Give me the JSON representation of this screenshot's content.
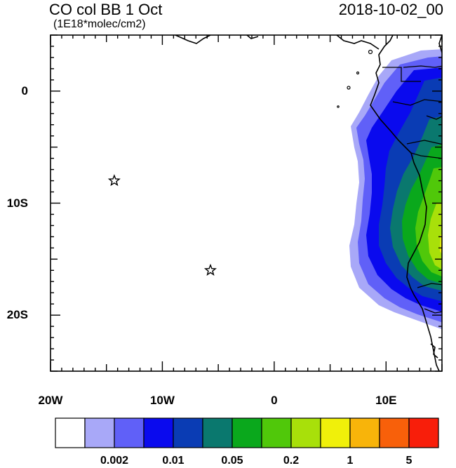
{
  "map": {
    "title": "CO col BB 1 Oct",
    "units": "(1E18*molec/cm2)",
    "date": "2018-10-02_00",
    "lat_labels": [
      {
        "lat": 0,
        "text": "0"
      },
      {
        "lat": -10,
        "text": "10S"
      },
      {
        "lat": -20,
        "text": "20S"
      }
    ],
    "lon_labels": [
      {
        "lon": -20,
        "text": "20W"
      },
      {
        "lon": -10,
        "text": "10W"
      },
      {
        "lon": 0,
        "text": "0"
      },
      {
        "lon": 10,
        "text": "10E"
      }
    ],
    "extent": {
      "lon_min": -20,
      "lon_max": 15,
      "lat_min": -25,
      "lat_max": 5
    },
    "markers": [
      {
        "name": "star-marker",
        "lon": -14.3,
        "lat": -8.0
      },
      {
        "name": "star-marker",
        "lon": -5.7,
        "lat": -16.0
      }
    ],
    "colorbar": {
      "colors": [
        "#ffffff",
        "#a8a8f8",
        "#6060f8",
        "#0a0aee",
        "#0a3cb4",
        "#0a786e",
        "#0aa81c",
        "#50c80a",
        "#a8e00a",
        "#f0f00a",
        "#f8b40a",
        "#f8600a",
        "#f81e0a"
      ],
      "labels": [
        {
          "after_box": 1,
          "text": "0.002"
        },
        {
          "after_box": 3,
          "text": "0.01"
        },
        {
          "after_box": 5,
          "text": "0.05"
        },
        {
          "after_box": 7,
          "text": "0.2"
        },
        {
          "after_box": 9,
          "text": "1"
        },
        {
          "after_box": 11,
          "text": "5"
        }
      ]
    }
  }
}
